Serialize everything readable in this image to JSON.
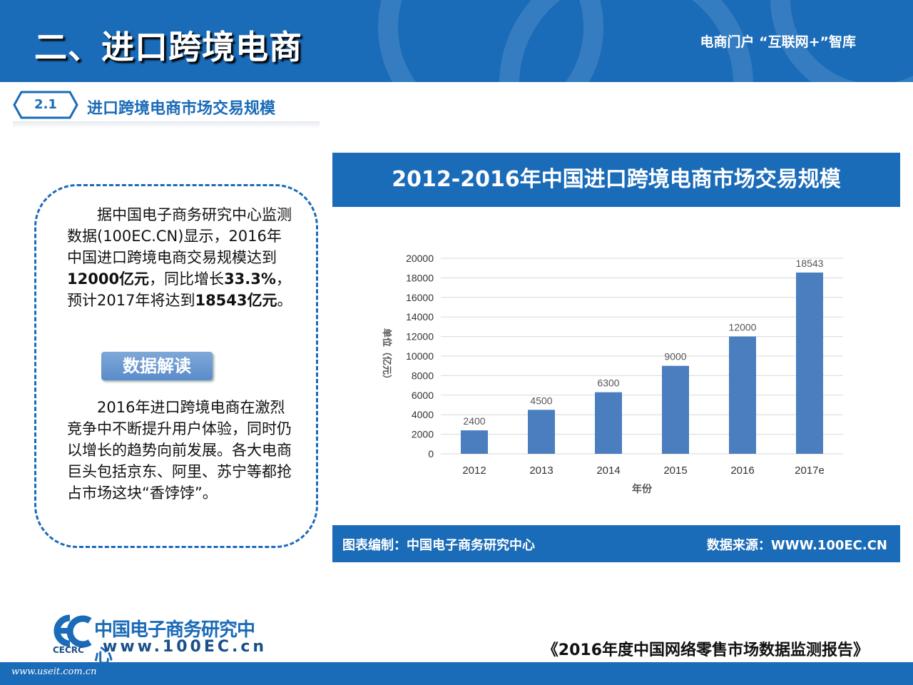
{
  "header": {
    "title": "二、进口跨境电商",
    "right_text": "电商门户  “互联网+”智库"
  },
  "section": {
    "number": "2.1",
    "title": "进口跨境电商市场交易规模"
  },
  "textbox": {
    "para1_a": "据中国电子商务研究中心监测数据(100EC.CN)显示，2016年中国进口跨境电商交易规模达到",
    "para1_b": "12000亿元",
    "para1_c": "，同比增长",
    "para1_d": "33.3%",
    "para1_e": "，预计2017年将达到",
    "para1_f": "18543亿元",
    "para1_g": "。",
    "badge": "数据解读",
    "para2": "2016年进口跨境电商在激烈竞争中不断提升用户体验，同时仍以增长的趋势向前发展。各大电商巨头包括京东、阿里、苏宁等都抢占市场这块“香饽饽”。"
  },
  "chart_data": {
    "type": "bar",
    "title": "2012-2016年中国进口跨境电商市场交易规模",
    "categories": [
      "2012",
      "2013",
      "2014",
      "2015",
      "2016",
      "2017e"
    ],
    "values": [
      2400,
      4500,
      6300,
      9000,
      12000,
      18543
    ],
    "data_labels": [
      "2400",
      "4500",
      "6300",
      "9000",
      "12000",
      "18543"
    ],
    "ylim": [
      0,
      20000
    ],
    "yticks": [
      0,
      2000,
      4000,
      6000,
      8000,
      10000,
      12000,
      14000,
      16000,
      18000,
      20000
    ],
    "xlabel": "年份",
    "ylabel": "单位（亿元）",
    "grid": true,
    "bar_color": "#4a7ebf",
    "footer_left": "图表编制：中国电子商务研究中心",
    "footer_right": "数据来源：WWW.100EC.CN"
  },
  "footer": {
    "logo_cn": "中国电子商务研究中心",
    "logo_url": "www.100EC.cn",
    "logo_abbr": "CECRC",
    "report_title": "《2016年度中国网络零售市场数据监测报告》",
    "watermark": "www.useit.com.cn"
  },
  "colors": {
    "primary": "#1a6bb8",
    "accent_light": "#7ea8d8"
  }
}
